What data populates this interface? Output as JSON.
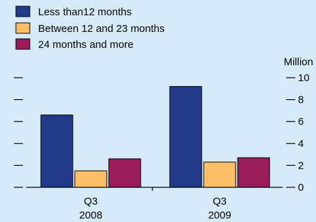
{
  "chart_data": {
    "type": "bar",
    "unit_label": "Million",
    "categories": [
      {
        "line1": "Q3",
        "line2": "2008"
      },
      {
        "line1": "Q3",
        "line2": "2009"
      }
    ],
    "series": [
      {
        "name": "Less than12 months",
        "color": "#233a8a",
        "values": [
          6.6,
          9.2
        ]
      },
      {
        "name": "Between 12 and 23 months",
        "color": "#ffbf66",
        "values": [
          1.5,
          2.3
        ]
      },
      {
        "name": "24 months and more",
        "color": "#9b1c5b",
        "values": [
          2.6,
          2.7
        ]
      }
    ],
    "y_ticks": [
      "0",
      "2",
      "4",
      "6",
      "8",
      "10"
    ],
    "ylim": [
      0,
      10
    ],
    "grid": false,
    "legend_position": "top-left"
  }
}
